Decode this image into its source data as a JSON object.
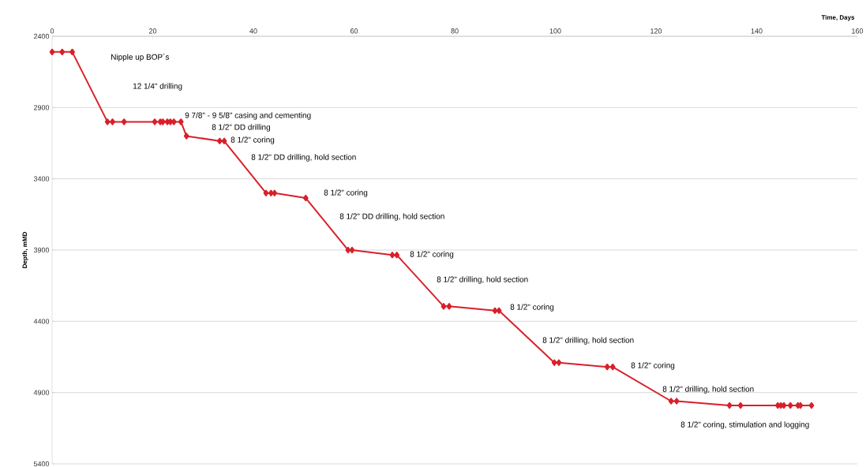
{
  "chart_data": {
    "type": "line",
    "xlabel": "Time, Days",
    "ylabel": "Depth, mMD",
    "x": [
      0,
      2,
      4,
      11,
      12,
      14.3,
      20.4,
      21.5,
      22,
      22.9,
      23.5,
      24.2,
      25.6,
      26.7,
      33.3,
      34.2,
      42.5,
      43.5,
      44.2,
      50.4,
      58.8,
      59.6,
      67.6,
      68.5,
      77.8,
      78.9,
      88,
      88.8,
      99.8,
      100.7,
      110.3,
      111.4,
      123,
      124.1,
      134.6,
      136.8,
      144.2,
      144.8,
      145.4,
      146.7,
      148.2,
      148.7,
      150.9
    ],
    "values": [
      2510,
      2510,
      2510,
      3000,
      3000,
      3000,
      3000,
      3000,
      3000,
      3000,
      3000,
      3000,
      3000,
      3100,
      3135,
      3135,
      3500,
      3500,
      3500,
      3535,
      3900,
      3900,
      3935,
      3935,
      4295,
      4295,
      4325,
      4325,
      4690,
      4690,
      4720,
      4720,
      4960,
      4960,
      4990,
      4990,
      4990,
      4990,
      4990,
      4990,
      4990,
      4990,
      4990
    ],
    "color": "#d9202a",
    "marker": "diamond",
    "line_style": "solid",
    "grid": "y",
    "xlim": [
      0,
      160
    ],
    "xticks": [
      0,
      20,
      40,
      60,
      80,
      100,
      120,
      140,
      160
    ],
    "ylim": [
      5400,
      2400
    ],
    "yticks": [
      2400,
      2900,
      3400,
      3900,
      4400,
      4900,
      5400
    ],
    "annotations": [
      "Nipple up BOP´s",
      "12 1/4\" drilling",
      "9 7/8\" - 9 5/8\"  casing and cementing",
      "8 1/2\" DD drilling",
      "8 1/2\" coring",
      "8 1/2\" DD drilling, hold section",
      "8 1/2\" coring",
      "8 1/2\" DD drilling, hold section",
      "8 1/2\" coring",
      "8 1/2\" drilling, hold section",
      "8 1/2\" coring",
      "8 1/2\" drilling, hold section",
      "8 1/2\" coring",
      "8 1/2\" drilling, hold section",
      "8 1/2\" coring, stimulation and logging"
    ]
  }
}
